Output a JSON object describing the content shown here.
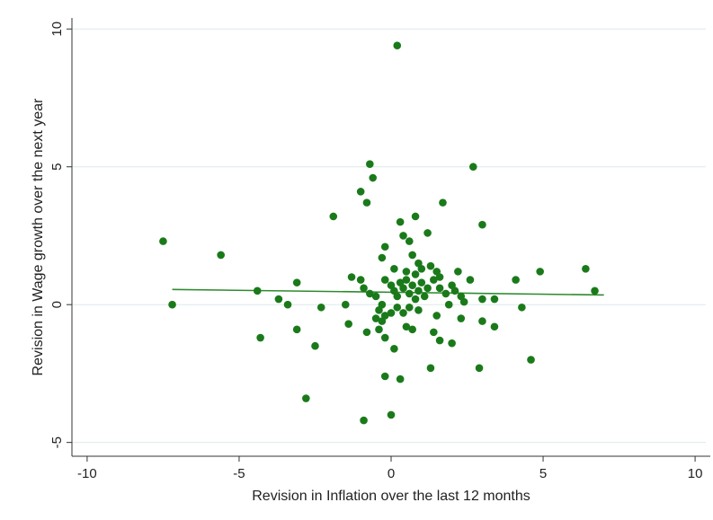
{
  "chart_data": {
    "type": "scatter",
    "title": "",
    "xlabel": "Revision in Inflation over the last 12 months",
    "ylabel": "Revision in Wage growth over the next year",
    "xlim": [
      -10.5,
      10.5
    ],
    "ylim": [
      -5.5,
      10.4
    ],
    "xticks": [
      -10,
      -5,
      0,
      5,
      10
    ],
    "yticks": [
      -5,
      0,
      5,
      10
    ],
    "xtick_labels": [
      "-10",
      "-5",
      "0",
      "5",
      "10"
    ],
    "ytick_labels": [
      "-5",
      "0",
      "5",
      "10"
    ],
    "grid": true,
    "colors": {
      "points": "#1a7a1a",
      "fit_line": "#2e8b2e",
      "grid": "#dde9ec",
      "axis": "#333333"
    },
    "fit_line": {
      "x": [
        -7.2,
        7.0
      ],
      "y": [
        0.55,
        0.35
      ]
    },
    "points": [
      [
        0.2,
        9.4
      ],
      [
        -0.7,
        5.1
      ],
      [
        -0.6,
        4.6
      ],
      [
        -1.0,
        4.1
      ],
      [
        -0.8,
        3.7
      ],
      [
        2.7,
        5.0
      ],
      [
        -1.9,
        3.2
      ],
      [
        1.7,
        3.7
      ],
      [
        0.8,
        3.2
      ],
      [
        0.3,
        3.0
      ],
      [
        3.0,
        2.9
      ],
      [
        1.2,
        2.6
      ],
      [
        0.4,
        2.5
      ],
      [
        0.6,
        2.3
      ],
      [
        -0.2,
        2.1
      ],
      [
        -7.5,
        2.3
      ],
      [
        -5.6,
        1.8
      ],
      [
        -0.3,
        1.7
      ],
      [
        0.7,
        1.8
      ],
      [
        0.9,
        1.5
      ],
      [
        1.3,
        1.4
      ],
      [
        1.5,
        1.2
      ],
      [
        0.1,
        1.3
      ],
      [
        0.5,
        1.2
      ],
      [
        0.8,
        1.1
      ],
      [
        1.0,
        1.3
      ],
      [
        1.6,
        1.0
      ],
      [
        2.2,
        1.2
      ],
      [
        2.6,
        0.9
      ],
      [
        4.1,
        0.9
      ],
      [
        4.9,
        1.2
      ],
      [
        6.4,
        1.3
      ],
      [
        6.7,
        0.5
      ],
      [
        -7.2,
        0.0
      ],
      [
        -4.4,
        0.5
      ],
      [
        -3.1,
        0.8
      ],
      [
        -3.7,
        0.2
      ],
      [
        -3.4,
        0.0
      ],
      [
        -2.3,
        -0.1
      ],
      [
        -1.3,
        1.0
      ],
      [
        -1.0,
        0.9
      ],
      [
        -0.9,
        0.6
      ],
      [
        -0.7,
        0.4
      ],
      [
        -0.5,
        0.3
      ],
      [
        -0.2,
        0.9
      ],
      [
        0.0,
        0.7
      ],
      [
        0.1,
        0.5
      ],
      [
        0.2,
        0.3
      ],
      [
        0.3,
        0.8
      ],
      [
        0.4,
        0.6
      ],
      [
        0.5,
        0.9
      ],
      [
        0.6,
        0.4
      ],
      [
        0.7,
        0.7
      ],
      [
        0.8,
        0.2
      ],
      [
        0.9,
        0.5
      ],
      [
        1.0,
        0.8
      ],
      [
        1.1,
        0.3
      ],
      [
        1.2,
        0.6
      ],
      [
        1.4,
        0.9
      ],
      [
        1.6,
        0.6
      ],
      [
        1.8,
        0.4
      ],
      [
        1.9,
        0.0
      ],
      [
        2.0,
        0.7
      ],
      [
        2.1,
        0.5
      ],
      [
        2.3,
        0.3
      ],
      [
        2.4,
        0.1
      ],
      [
        3.0,
        0.2
      ],
      [
        3.4,
        0.2
      ],
      [
        4.3,
        -0.1
      ],
      [
        -0.3,
        0.0
      ],
      [
        -0.4,
        -0.2
      ],
      [
        -0.5,
        -0.5
      ],
      [
        -0.3,
        -0.6
      ],
      [
        -0.2,
        -0.4
      ],
      [
        0.0,
        -0.3
      ],
      [
        0.2,
        -0.1
      ],
      [
        0.4,
        -0.3
      ],
      [
        0.6,
        -0.1
      ],
      [
        0.9,
        -0.2
      ],
      [
        1.5,
        -0.4
      ],
      [
        2.3,
        -0.5
      ],
      [
        3.0,
        -0.6
      ],
      [
        3.4,
        -0.8
      ],
      [
        -1.4,
        -0.7
      ],
      [
        -1.5,
        0.0
      ],
      [
        -0.8,
        -1.0
      ],
      [
        -0.4,
        -0.9
      ],
      [
        -0.2,
        -1.2
      ],
      [
        0.5,
        -0.8
      ],
      [
        0.7,
        -0.9
      ],
      [
        1.4,
        -1.0
      ],
      [
        1.6,
        -1.3
      ],
      [
        2.0,
        -1.4
      ],
      [
        0.1,
        -1.6
      ],
      [
        -3.1,
        -0.9
      ],
      [
        -4.3,
        -1.2
      ],
      [
        -2.5,
        -1.5
      ],
      [
        -0.2,
        -2.6
      ],
      [
        0.3,
        -2.7
      ],
      [
        1.3,
        -2.3
      ],
      [
        2.9,
        -2.3
      ],
      [
        4.6,
        -2.0
      ],
      [
        -2.8,
        -3.4
      ],
      [
        -0.9,
        -4.2
      ],
      [
        0.0,
        -4.0
      ]
    ]
  }
}
